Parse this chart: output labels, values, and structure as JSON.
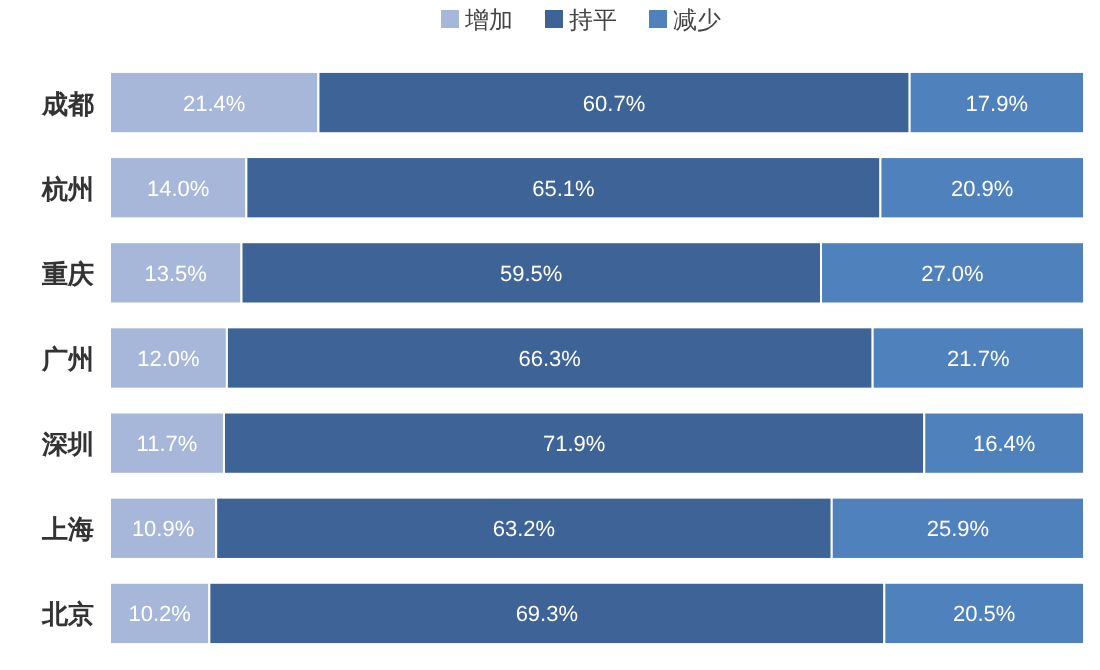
{
  "chart_data": {
    "type": "bar",
    "orientation": "horizontal",
    "stacked": true,
    "legend": "top",
    "grid": false,
    "categories": [
      "成都",
      "杭州",
      "重庆",
      "广州",
      "深圳",
      "上海",
      "北京"
    ],
    "series": [
      {
        "name": "增加",
        "color": "#a7b7d9",
        "values": [
          21.4,
          14.0,
          13.5,
          12.0,
          11.7,
          10.9,
          10.2
        ],
        "value_labels": [
          "21.4%",
          "14.0%",
          "13.5%",
          "12.0%",
          "11.7%",
          "10.9%",
          "10.2%"
        ]
      },
      {
        "name": "持平",
        "color": "#3e6497",
        "values": [
          60.7,
          65.1,
          59.5,
          66.3,
          71.9,
          63.2,
          69.3
        ],
        "value_labels": [
          "60.7%",
          "65.1%",
          "59.5%",
          "66.3%",
          "71.9%",
          "63.2%",
          "69.3%"
        ]
      },
      {
        "name": "减少",
        "color": "#4f81bd",
        "values": [
          17.9,
          20.9,
          27.0,
          21.7,
          16.4,
          25.9,
          20.5
        ],
        "value_labels": [
          "17.9%",
          "20.9%",
          "27.0%",
          "21.7%",
          "16.4%",
          "25.9%",
          "20.5%"
        ]
      }
    ]
  }
}
